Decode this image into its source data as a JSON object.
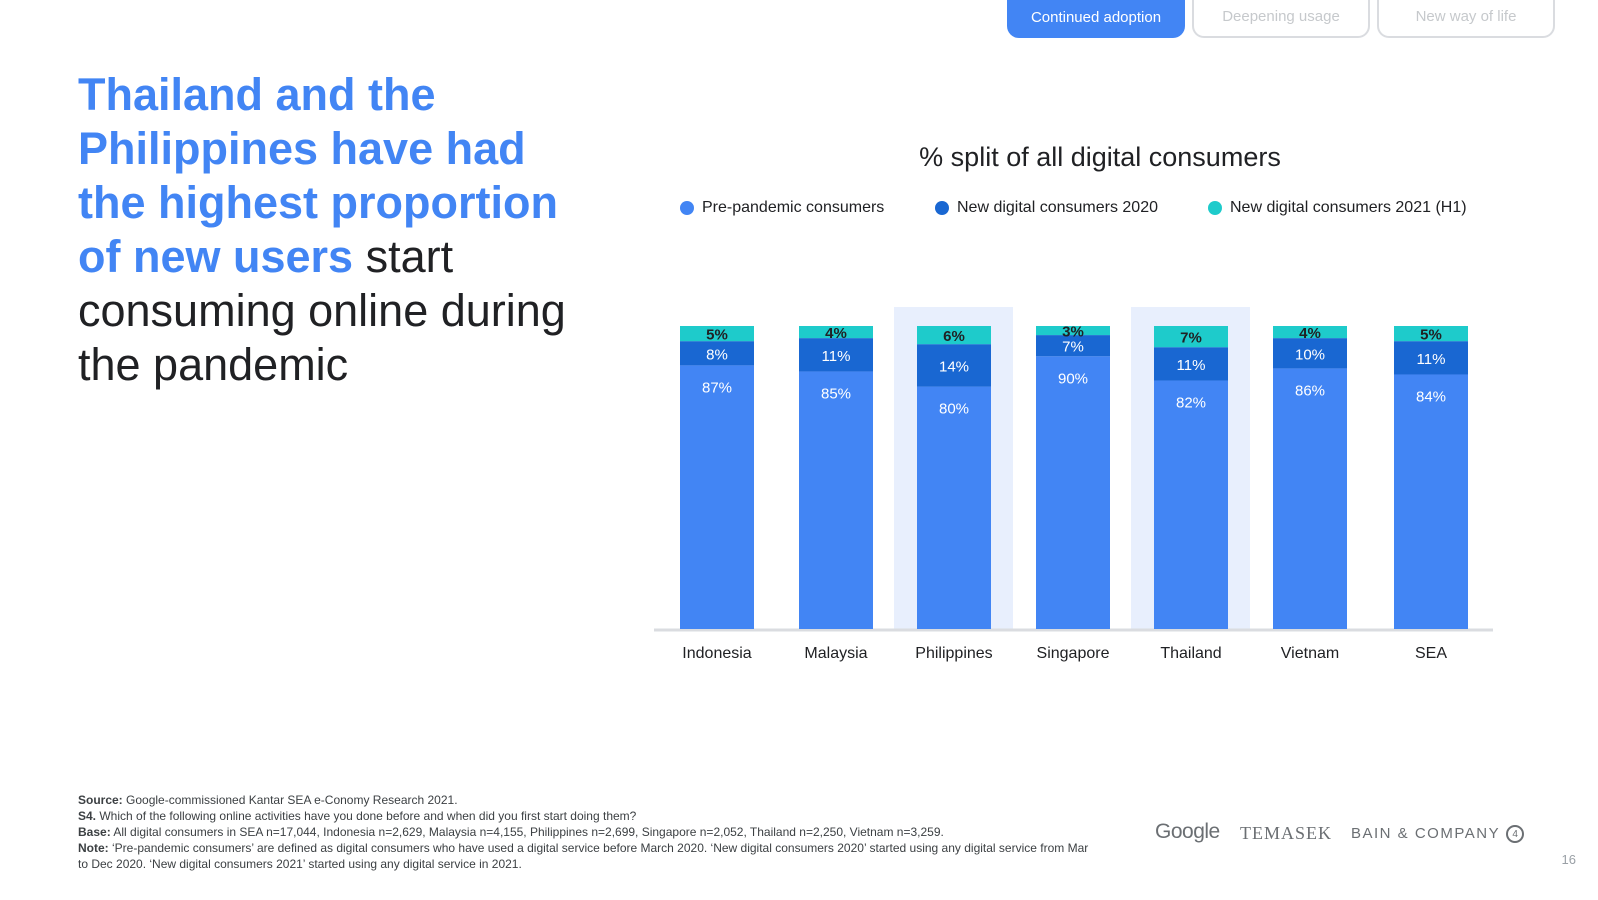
{
  "tabs": [
    {
      "label": "Continued adoption",
      "active": true
    },
    {
      "label": "Deepening usage",
      "active": false
    },
    {
      "label": "New way of life",
      "active": false
    }
  ],
  "headline": {
    "highlight": "Thailand and the Philippines have had the highest proportion of new users",
    "rest": " start consuming online during the pandemic"
  },
  "colors": {
    "pre": "#4285f4",
    "new2020": "#1967d2",
    "new2021": "#1ecbcb",
    "highlight_band": "#e8effd",
    "axis": "#dadce0"
  },
  "chart_data": {
    "type": "bar",
    "stacked": true,
    "title": "% split of all digital consumers",
    "categories": [
      "Indonesia",
      "Malaysia",
      "Philippines",
      "Singapore",
      "Thailand",
      "Vietnam",
      "SEA"
    ],
    "highlighted": [
      "Philippines",
      "Thailand"
    ],
    "ylim": [
      0,
      100
    ],
    "series": [
      {
        "name": "Pre-pandemic consumers",
        "values": [
          87,
          85,
          80,
          90,
          82,
          86,
          84
        ],
        "labels": [
          "87%",
          "85%",
          "80%",
          "90%",
          "82%",
          "86%",
          "84%"
        ]
      },
      {
        "name": "New digital consumers 2020",
        "values": [
          8,
          11,
          14,
          7,
          11,
          10,
          11
        ],
        "labels": [
          "8%",
          "11%",
          "14%",
          "7%",
          "11%",
          "10%",
          "11%"
        ]
      },
      {
        "name": "New digital consumers 2021 (H1)",
        "values": [
          5,
          4,
          6,
          3,
          7,
          4,
          5
        ],
        "labels": [
          "5%",
          "4%",
          "6%",
          "3%",
          "7%",
          "4%",
          "5%"
        ]
      }
    ]
  },
  "footer": {
    "source_label": "Source:",
    "source_text": " Google-commissioned Kantar SEA e-Conomy Research 2021.",
    "q_label": "S4.",
    "q_text": " Which of the following online activities have you done before and when did you first start doing them?",
    "base_label": "Base:",
    "base_text": " All digital consumers in SEA n=17,044, Indonesia n=2,629, Malaysia n=4,155, Philippines n=2,699, Singapore n=2,052, Thailand n=2,250, Vietnam n=3,259.",
    "note_label": "Note:",
    "note_text": " ‘Pre-pandemic consumers’ are defined as digital consumers who have used a digital service before March 2020. ‘New digital consumers 2020’ started using any digital service from Mar to Dec 2020. ‘New digital consumers 2021’ started using any digital service in 2021."
  },
  "logos": {
    "google": "Google",
    "temasek": "TEMASEK",
    "bain": "BAIN & COMPANY",
    "bain_mark": "4"
  },
  "page_number": "16"
}
